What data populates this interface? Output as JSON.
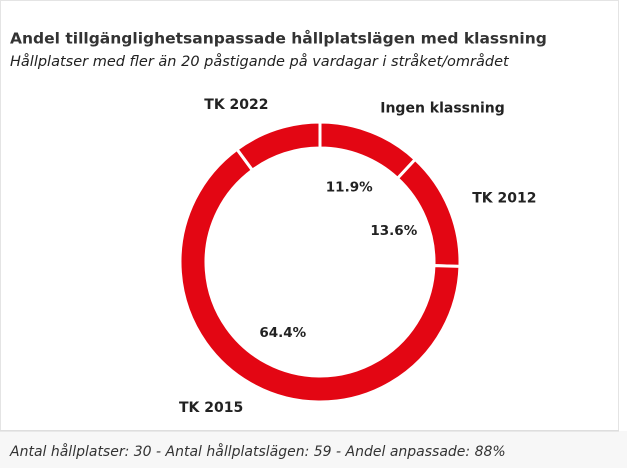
{
  "chart_data": {
    "type": "donut",
    "title": "Andel tillgänglighetsanpassade hållplatslägen med klassning",
    "subtitle": "Hållplatser med fler än 20 påstigande på vardagar i stråket/området",
    "categories": [
      "Ingen klassning",
      "TK 2012",
      "TK 2015",
      "TK 2022"
    ],
    "values": [
      11.9,
      13.6,
      64.4,
      10.1
    ],
    "value_labels": [
      "11.9%",
      "13.6%",
      "64.4%",
      null
    ],
    "color": "#e30613",
    "footer": "Antal hållplatser: 30 - Antal hållplatslägen: 59 - Andel anpassade: 88%"
  }
}
